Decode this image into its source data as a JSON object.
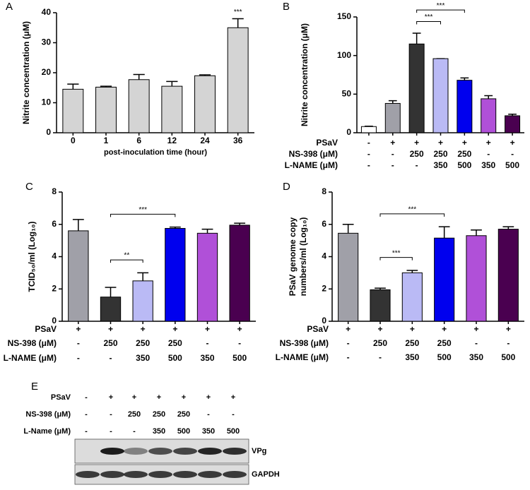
{
  "chart_data": [
    {
      "type": "bar",
      "panel": "A",
      "y_label": "Nitrite concentration (μM)",
      "x_label": "post-inoculation time (hour)",
      "categories": [
        "0",
        "1",
        "6",
        "12",
        "24",
        "36"
      ],
      "values": [
        14.5,
        15.2,
        17.7,
        15.5,
        19,
        35
      ],
      "errors": [
        1.7,
        0.3,
        1.7,
        1.6,
        0.3,
        3
      ],
      "colors": [
        "#d4d4d4",
        "#d4d4d4",
        "#d4d4d4",
        "#d4d4d4",
        "#d4d4d4",
        "#d4d4d4"
      ],
      "ylim": [
        0,
        40
      ],
      "yticks": [
        0,
        10,
        20,
        30,
        40
      ],
      "annotations": [
        {
          "text": "***",
          "index": 5
        }
      ]
    },
    {
      "type": "bar",
      "panel": "B",
      "y_label": "Nitrite concentration (μM)",
      "values": [
        8,
        38,
        115,
        96,
        68,
        44,
        22
      ],
      "errors": [
        0.5,
        3.5,
        14,
        0,
        3,
        4,
        2
      ],
      "colors": [
        "#ffffff",
        "#a0a0a8",
        "#333333",
        "#babaf5",
        "#0000ee",
        "#b050d8",
        "#4a0050"
      ],
      "ylim": [
        0,
        150
      ],
      "yticks": [
        0,
        50,
        100,
        150
      ],
      "treatments": [
        {
          "name": "PSaV",
          "labels": [
            "-",
            "+",
            "+",
            "+",
            "+",
            "+",
            "+"
          ]
        },
        {
          "name": "NS-398 (μM)",
          "labels": [
            "-",
            "-",
            "250",
            "250",
            "250",
            "-",
            "-"
          ]
        },
        {
          "name": "L-NAME (μM)",
          "labels": [
            "-",
            "-",
            "-",
            "350",
            "500",
            "350",
            "500"
          ]
        }
      ],
      "comparisons": [
        {
          "from": 2,
          "to": 3,
          "label": "***"
        },
        {
          "from": 2,
          "to": 4,
          "label": "***"
        }
      ]
    },
    {
      "type": "bar",
      "panel": "C",
      "y_label": "TCID₅₀/ml (Log₁₀)",
      "values": [
        5.6,
        1.5,
        2.5,
        5.75,
        5.45,
        5.95
      ],
      "errors": [
        0.7,
        0.6,
        0.5,
        0.08,
        0.25,
        0.12
      ],
      "colors": [
        "#a0a0a8",
        "#333333",
        "#babaf5",
        "#0000ee",
        "#b050d8",
        "#4a0050"
      ],
      "ylim": [
        0,
        8
      ],
      "yticks": [
        0,
        2,
        4,
        6,
        8
      ],
      "treatments": [
        {
          "name": "PSaV",
          "labels": [
            "+",
            "+",
            "+",
            "+",
            "+",
            "+"
          ]
        },
        {
          "name": "NS-398 (μM)",
          "labels": [
            "-",
            "250",
            "250",
            "250",
            "-",
            "-"
          ]
        },
        {
          "name": "L-NAME (μM)",
          "labels": [
            "-",
            "-",
            "350",
            "500",
            "350",
            "500"
          ]
        }
      ],
      "comparisons": [
        {
          "from": 1,
          "to": 2,
          "label": "**"
        },
        {
          "from": 1,
          "to": 3,
          "label": "***"
        }
      ]
    },
    {
      "type": "bar",
      "panel": "D",
      "y_label": [
        "PSaV genome copy",
        "numbers/ml (Log₁₀)"
      ],
      "values": [
        5.45,
        1.95,
        3.0,
        5.15,
        5.3,
        5.7
      ],
      "errors": [
        0.55,
        0.1,
        0.15,
        0.7,
        0.35,
        0.15
      ],
      "colors": [
        "#a0a0a8",
        "#333333",
        "#babaf5",
        "#0000ee",
        "#b050d8",
        "#4a0050"
      ],
      "ylim": [
        0,
        8
      ],
      "yticks": [
        0,
        2,
        4,
        6,
        8
      ],
      "treatments": [
        {
          "name": "PSaV",
          "labels": [
            "+",
            "+",
            "+",
            "+",
            "+",
            "+"
          ]
        },
        {
          "name": "NS-398 (μM)",
          "labels": [
            "-",
            "250",
            "250",
            "250",
            "-",
            "-"
          ]
        },
        {
          "name": "L-NAME (μM)",
          "labels": [
            "-",
            "-",
            "350",
            "500",
            "350",
            "500"
          ]
        }
      ],
      "comparisons": [
        {
          "from": 1,
          "to": 2,
          "label": "***"
        },
        {
          "from": 1,
          "to": 3,
          "label": "***"
        }
      ]
    }
  ],
  "blot": {
    "panel": "E",
    "treatments": [
      {
        "name": "PSaV",
        "labels": [
          "-",
          "+",
          "+",
          "+",
          "+",
          "+",
          "+"
        ]
      },
      {
        "name": "NS-398 (μM)",
        "labels": [
          "-",
          "-",
          "250",
          "250",
          "250",
          "-",
          "-"
        ]
      },
      {
        "name": "L-Name (μM)",
        "labels": [
          "-",
          "-",
          "-",
          "350",
          "500",
          "350",
          "500"
        ]
      }
    ],
    "bands": [
      "VPg",
      "GAPDH"
    ]
  }
}
